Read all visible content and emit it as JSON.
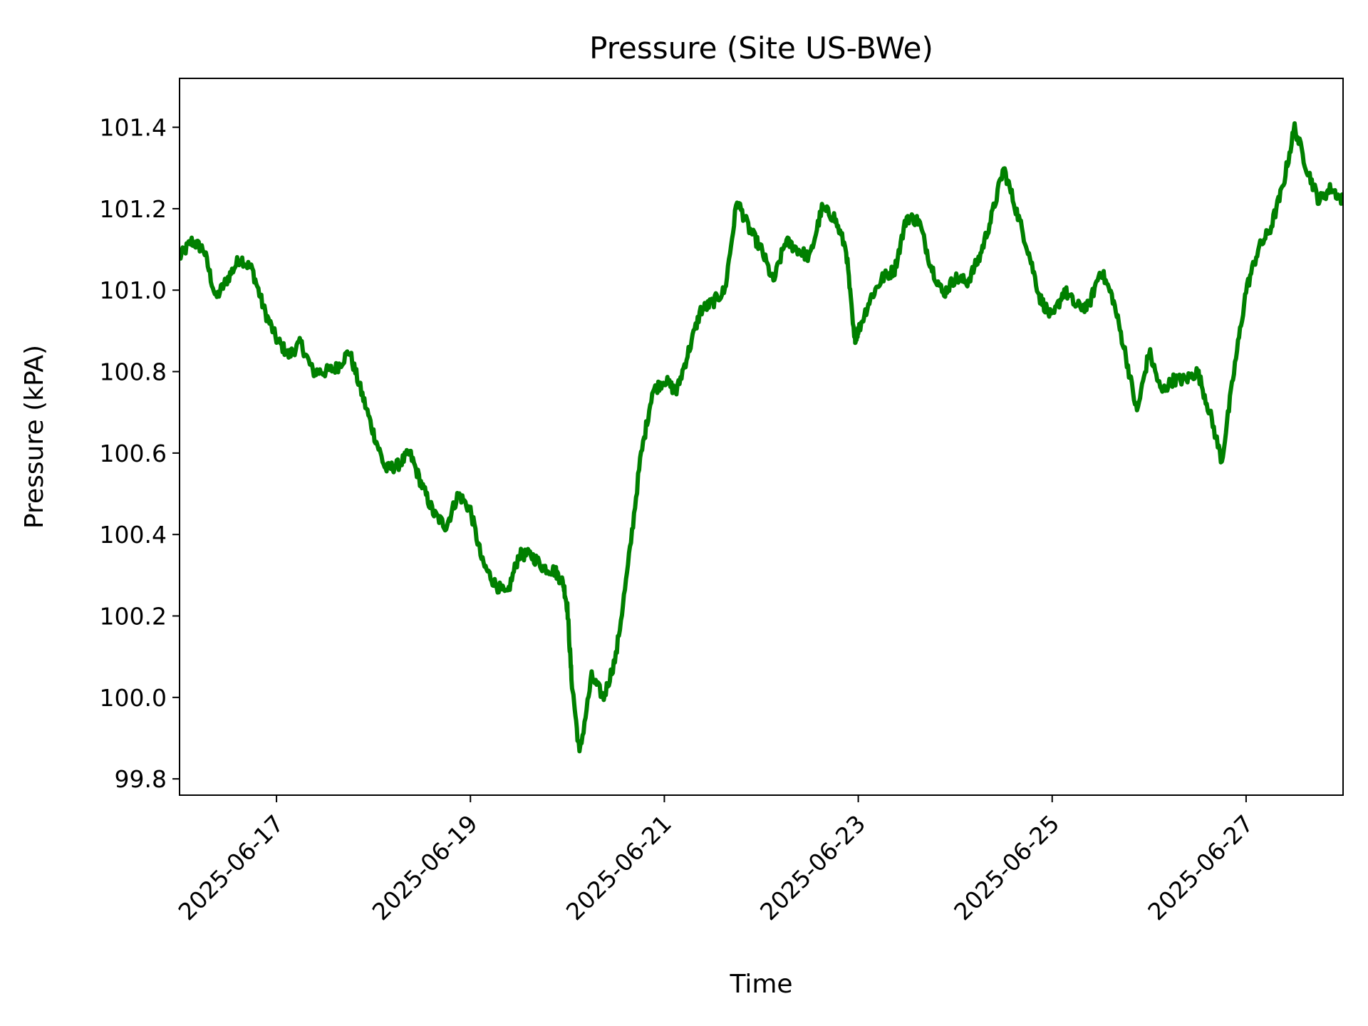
{
  "chart_data": {
    "type": "line",
    "title": "Pressure (Site US-BWe)",
    "xlabel": "Time",
    "ylabel": "Pressure (kPA)",
    "x_range": [
      "2025-06-16 00:00",
      "2025-06-28 00:00"
    ],
    "ylim": [
      99.76,
      101.52
    ],
    "y_ticks": [
      99.8,
      100.0,
      100.2,
      100.4,
      100.6,
      100.8,
      101.0,
      101.2,
      101.4
    ],
    "y_tick_labels": [
      "99.8",
      "100.0",
      "100.2",
      "100.4",
      "100.6",
      "100.8",
      "101.0",
      "101.2",
      "101.4"
    ],
    "x_ticks": [
      "2025-06-17",
      "2025-06-19",
      "2025-06-21",
      "2025-06-23",
      "2025-06-25",
      "2025-06-27"
    ],
    "grid": false,
    "series": [
      {
        "color": "#008000",
        "x": [
          "2025-06-16 00:00",
          "2025-06-16 03:00",
          "2025-06-16 06:00",
          "2025-06-16 09:00",
          "2025-06-16 12:00",
          "2025-06-16 15:00",
          "2025-06-16 18:00",
          "2025-06-16 21:00",
          "2025-06-17 00:00",
          "2025-06-17 03:00",
          "2025-06-17 06:00",
          "2025-06-17 09:00",
          "2025-06-17 12:00",
          "2025-06-17 15:00",
          "2025-06-17 18:00",
          "2025-06-17 21:00",
          "2025-06-18 00:00",
          "2025-06-18 03:00",
          "2025-06-18 06:00",
          "2025-06-18 09:00",
          "2025-06-18 12:00",
          "2025-06-18 15:00",
          "2025-06-18 18:00",
          "2025-06-18 21:00",
          "2025-06-19 00:00",
          "2025-06-19 03:00",
          "2025-06-19 06:00",
          "2025-06-19 09:00",
          "2025-06-19 12:00",
          "2025-06-19 15:00",
          "2025-06-19 18:00",
          "2025-06-19 21:00",
          "2025-06-19 23:00",
          "2025-06-20 00:00",
          "2025-06-20 01:00",
          "2025-06-20 03:00",
          "2025-06-20 06:00",
          "2025-06-20 09:00",
          "2025-06-20 12:00",
          "2025-06-20 15:00",
          "2025-06-20 18:00",
          "2025-06-20 21:00",
          "2025-06-21 00:00",
          "2025-06-21 03:00",
          "2025-06-21 06:00",
          "2025-06-21 09:00",
          "2025-06-21 12:00",
          "2025-06-21 15:00",
          "2025-06-21 18:00",
          "2025-06-21 21:00",
          "2025-06-22 00:00",
          "2025-06-22 03:00",
          "2025-06-22 06:00",
          "2025-06-22 09:00",
          "2025-06-22 12:00",
          "2025-06-22 15:00",
          "2025-06-22 18:00",
          "2025-06-22 21:00",
          "2025-06-22 23:00",
          "2025-06-23 00:00",
          "2025-06-23 03:00",
          "2025-06-23 06:00",
          "2025-06-23 09:00",
          "2025-06-23 12:00",
          "2025-06-23 15:00",
          "2025-06-23 18:00",
          "2025-06-23 21:00",
          "2025-06-24 00:00",
          "2025-06-24 03:00",
          "2025-06-24 06:00",
          "2025-06-24 09:00",
          "2025-06-24 12:00",
          "2025-06-24 15:00",
          "2025-06-24 18:00",
          "2025-06-24 21:00",
          "2025-06-25 00:00",
          "2025-06-25 03:00",
          "2025-06-25 06:00",
          "2025-06-25 09:00",
          "2025-06-25 12:00",
          "2025-06-25 15:00",
          "2025-06-25 18:00",
          "2025-06-25 21:00",
          "2025-06-26 00:00",
          "2025-06-26 03:00",
          "2025-06-26 06:00",
          "2025-06-26 09:00",
          "2025-06-26 12:00",
          "2025-06-26 15:00",
          "2025-06-26 18:00",
          "2025-06-26 21:00",
          "2025-06-27 00:00",
          "2025-06-27 03:00",
          "2025-06-27 06:00",
          "2025-06-27 09:00",
          "2025-06-27 12:00",
          "2025-06-27 15:00",
          "2025-06-27 18:00",
          "2025-06-27 21:00",
          "2025-06-28 00:00"
        ],
        "y": [
          101.08,
          101.12,
          101.1,
          100.98,
          101.03,
          101.08,
          101.05,
          100.95,
          100.88,
          100.84,
          100.87,
          100.8,
          100.8,
          100.81,
          100.85,
          100.75,
          100.65,
          100.56,
          100.57,
          100.6,
          100.52,
          100.45,
          100.42,
          100.5,
          100.46,
          100.33,
          100.28,
          100.25,
          100.35,
          100.35,
          100.32,
          100.31,
          100.28,
          100.22,
          100.05,
          99.86,
          100.05,
          100.0,
          100.1,
          100.32,
          100.58,
          100.75,
          100.78,
          100.75,
          100.85,
          100.95,
          100.97,
          101.0,
          101.22,
          101.15,
          101.1,
          101.02,
          101.12,
          101.1,
          101.08,
          101.2,
          101.18,
          101.1,
          100.88,
          100.9,
          100.98,
          101.03,
          101.05,
          101.18,
          101.17,
          101.06,
          100.99,
          101.03,
          101.02,
          101.08,
          101.18,
          101.3,
          101.2,
          101.1,
          100.98,
          100.93,
          101.0,
          100.96,
          100.96,
          101.05,
          100.98,
          100.85,
          100.7,
          100.85,
          100.75,
          100.78,
          100.78,
          100.8,
          100.7,
          100.58,
          100.8,
          101.0,
          101.1,
          101.15,
          101.25,
          101.4,
          101.3,
          101.22,
          101.25,
          101.22
        ]
      }
    ]
  }
}
